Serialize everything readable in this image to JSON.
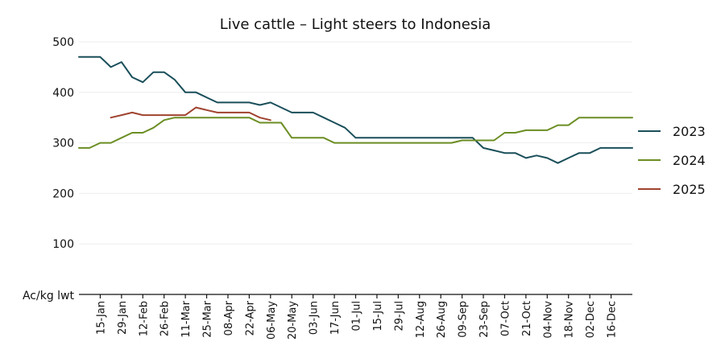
{
  "chart_data": {
    "type": "line",
    "title": "Live cattle – Light steers to Indonesia",
    "ylabel": "Ac/kg lwt",
    "xlabel": "",
    "ylim": [
      0,
      500
    ],
    "yticks": [
      100,
      200,
      300,
      400,
      500
    ],
    "grid": true,
    "legend": "right",
    "categories": [
      "15-Jan",
      "29-Jan",
      "12-Feb",
      "26-Feb",
      "11-Mar",
      "25-Mar",
      "08-Apr",
      "22-Apr",
      "06-May",
      "20-May",
      "03-Jun",
      "17-Jun",
      "01-Jul",
      "15-Jul",
      "29-Jul",
      "12-Aug",
      "26-Aug",
      "09-Sep",
      "23-Sep",
      "07-Oct",
      "21-Oct",
      "04-Nov",
      "18-Nov",
      "02-Dec",
      "16-Dec"
    ],
    "x_week_range": [
      1,
      53
    ],
    "series": [
      {
        "name": "2023",
        "color": "#1a4f5a",
        "x": [
          1,
          2,
          3,
          4,
          5,
          6,
          7,
          8,
          9,
          10,
          11,
          12,
          13,
          14,
          15,
          16,
          17,
          18,
          19,
          20,
          21,
          22,
          23,
          24,
          25,
          26,
          27,
          28,
          29,
          30,
          31,
          32,
          33,
          34,
          35,
          36,
          37,
          38,
          39,
          40,
          41,
          42,
          43,
          44,
          45,
          46,
          47,
          48,
          49,
          50,
          51,
          52,
          53
        ],
        "values": [
          470,
          470,
          470,
          450,
          460,
          430,
          420,
          440,
          440,
          425,
          400,
          400,
          390,
          380,
          380,
          380,
          380,
          375,
          380,
          370,
          360,
          360,
          360,
          350,
          340,
          330,
          310,
          310,
          310,
          310,
          310,
          310,
          310,
          310,
          310,
          310,
          310,
          310,
          290,
          285,
          280,
          280,
          270,
          275,
          270,
          260,
          270,
          280,
          280,
          290,
          290,
          290,
          290
        ]
      },
      {
        "name": "2024",
        "color": "#6b8e23",
        "x": [
          1,
          2,
          3,
          4,
          5,
          6,
          7,
          8,
          9,
          10,
          11,
          12,
          13,
          14,
          15,
          16,
          17,
          18,
          19,
          20,
          21,
          22,
          23,
          24,
          25,
          26,
          27,
          28,
          29,
          30,
          31,
          32,
          33,
          34,
          35,
          36,
          37,
          38,
          39,
          40,
          41,
          42,
          43,
          44,
          45,
          46,
          47,
          48,
          49,
          50,
          51,
          52,
          53
        ],
        "values": [
          290,
          290,
          300,
          300,
          310,
          320,
          320,
          330,
          345,
          350,
          350,
          350,
          350,
          350,
          350,
          350,
          350,
          340,
          340,
          340,
          310,
          310,
          310,
          310,
          300,
          300,
          300,
          300,
          300,
          300,
          300,
          300,
          300,
          300,
          300,
          300,
          305,
          305,
          305,
          305,
          320,
          320,
          325,
          325,
          325,
          335,
          335,
          350,
          350,
          350,
          350,
          350,
          350
        ]
      },
      {
        "name": "2025",
        "color": "#a0432f",
        "x": [
          4,
          5,
          6,
          7,
          8,
          9,
          10,
          11,
          12,
          13,
          14,
          15,
          16,
          17,
          18,
          19
        ],
        "values": [
          350,
          355,
          360,
          355,
          355,
          355,
          355,
          355,
          370,
          365,
          360,
          360,
          360,
          360,
          350,
          345
        ]
      }
    ]
  }
}
